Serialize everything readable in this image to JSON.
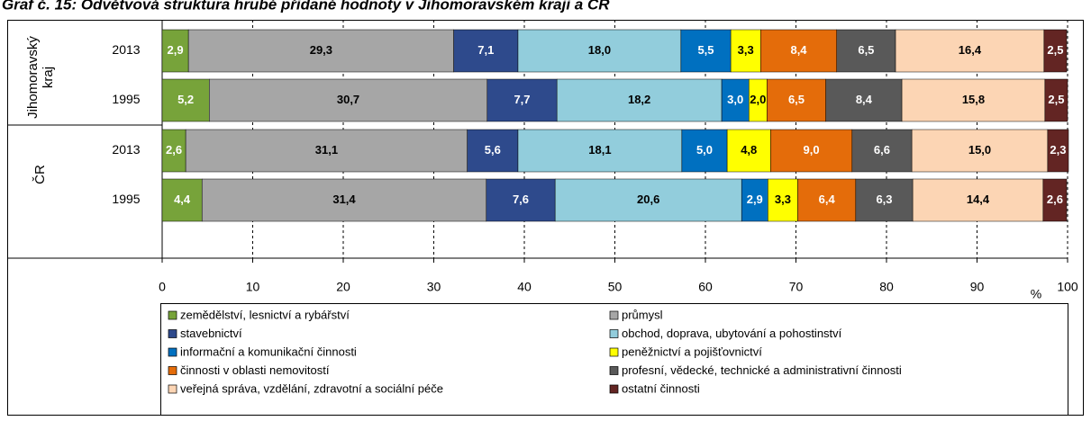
{
  "chart_data": {
    "type": "stacked-bar-horizontal",
    "title": "Graf č. 15: Odvětvová struktura hrubé přidané hodnoty v Jihomoravském kraji a ČR",
    "groups": [
      "Jihomoravský kraj",
      "ČR"
    ],
    "categories": [
      "2013",
      "1995",
      "2013",
      "1995"
    ],
    "xlim": [
      0,
      100
    ],
    "xticks": [
      0,
      10,
      20,
      30,
      40,
      50,
      60,
      70,
      80,
      90,
      100
    ],
    "x_label": "%",
    "grid": true,
    "legend": "bottom",
    "series": [
      {
        "name": "zemědělství, lesnictví a rybářství",
        "color": "#77a33a",
        "values": [
          2.9,
          5.2,
          2.6,
          4.4
        ],
        "value_labels": [
          "2,9",
          "5,2",
          "2,6",
          "4,4"
        ]
      },
      {
        "name": "průmysl",
        "color": "#a6a6a6",
        "values": [
          29.3,
          30.7,
          31.1,
          31.4
        ],
        "value_labels": [
          "29,3",
          "30,7",
          "31,1",
          "31,4"
        ]
      },
      {
        "name": "stavebnictví",
        "color": "#2e4a8c",
        "values": [
          7.1,
          7.7,
          5.6,
          7.6
        ],
        "value_labels": [
          "7,1",
          "7,7",
          "5,6",
          "7,6"
        ]
      },
      {
        "name": "obchod, doprava, ubytování a pohostinství",
        "color": "#92cddc",
        "values": [
          18.0,
          18.2,
          18.1,
          20.6
        ],
        "value_labels": [
          "18,0",
          "18,2",
          "18,1",
          "20,6"
        ]
      },
      {
        "name": "informační a komunikační činnosti",
        "color": "#0070c0",
        "values": [
          5.5,
          3.0,
          5.0,
          2.9
        ],
        "value_labels": [
          "5,5",
          "3,0",
          "5,0",
          "2,9"
        ]
      },
      {
        "name": "peněžnictví a pojišťovnictví",
        "color": "#ffff00",
        "values": [
          3.3,
          2.0,
          4.8,
          3.3
        ],
        "value_labels": [
          "3,3",
          "2,0",
          "4,8",
          "3,3"
        ]
      },
      {
        "name": "činnosti v oblasti nemovitostí",
        "color": "#e46c0a",
        "values": [
          8.4,
          6.5,
          9.0,
          6.4
        ],
        "value_labels": [
          "8,4",
          "6,5",
          "9,0",
          "6,4"
        ]
      },
      {
        "name": "profesní, vědecké, technické a administrativní činnosti",
        "color": "#595959",
        "values": [
          6.5,
          8.4,
          6.6,
          6.3
        ],
        "value_labels": [
          "6,5",
          "8,4",
          "6,6",
          "6,3"
        ]
      },
      {
        "name": "veřejná správa, vzdělání, zdravotní a sociální péče",
        "color": "#fcd5b4",
        "values": [
          16.4,
          15.8,
          15.0,
          14.4
        ],
        "value_labels": [
          "16,4",
          "15,8",
          "15,0",
          "14,4"
        ]
      },
      {
        "name": "ostatní činnosti",
        "color": "#632523",
        "values": [
          2.5,
          2.5,
          2.3,
          2.6
        ],
        "value_labels": [
          "2,5",
          "2,5",
          "2,3",
          "2,6"
        ]
      }
    ]
  }
}
